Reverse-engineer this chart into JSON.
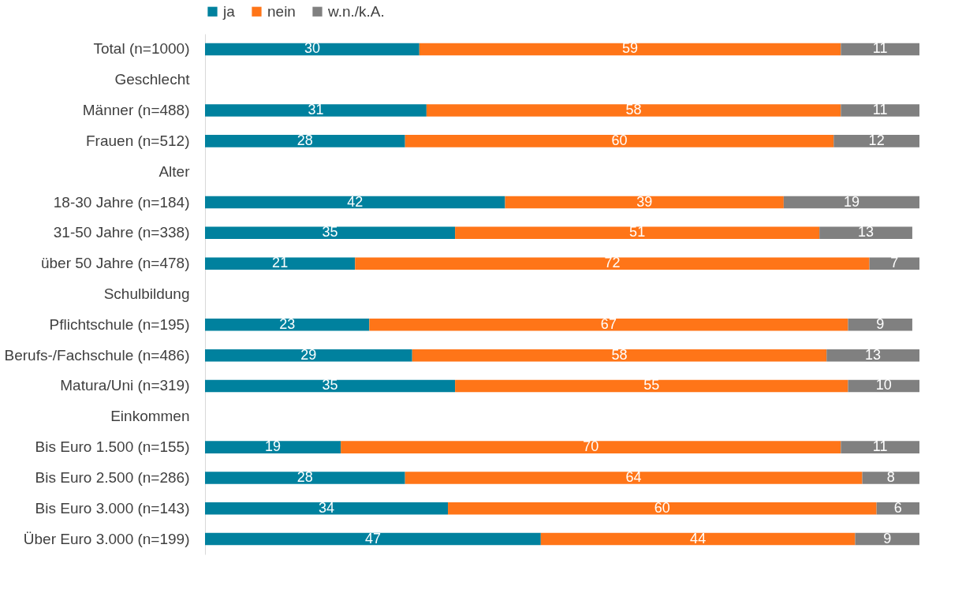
{
  "chart_data": {
    "type": "bar",
    "orientation": "horizontal",
    "stacked": true,
    "data_labels": true,
    "legend": "top",
    "grid": false,
    "tick_labels": "y",
    "xlim": [
      0,
      100
    ],
    "categories": [
      "Total (n=1000)",
      "Geschlecht",
      "Männer (n=488)",
      "Frauen (n=512)",
      "Alter",
      "18-30 Jahre (n=184)",
      "31-50 Jahre (n=338)",
      "über 50 Jahre (n=478)",
      "Schulbildung",
      "Pflichtschule (n=195)",
      "Berufs-/Fachschule (n=486)",
      "Matura/Uni (n=319)",
      "Einkommen",
      "Bis Euro 1.500 (n=155)",
      "Bis Euro 2.500 (n=286)",
      "Bis Euro 3.000 (n=143)",
      "Über Euro 3.000 (n=199)"
    ],
    "series": [
      {
        "name": "ja",
        "color": "#00819e",
        "values": [
          30,
          null,
          31,
          28,
          null,
          42,
          35,
          21,
          null,
          23,
          29,
          35,
          null,
          19,
          28,
          34,
          47
        ]
      },
      {
        "name": "nein",
        "color": "#ff7518",
        "values": [
          59,
          null,
          58,
          60,
          null,
          39,
          51,
          72,
          null,
          67,
          58,
          55,
          null,
          70,
          64,
          60,
          44
        ]
      },
      {
        "name": "w.n./k.A.",
        "color": "#808080",
        "values": [
          11,
          null,
          11,
          12,
          null,
          19,
          13,
          7,
          null,
          9,
          13,
          10,
          null,
          11,
          8,
          6,
          9
        ]
      }
    ]
  }
}
